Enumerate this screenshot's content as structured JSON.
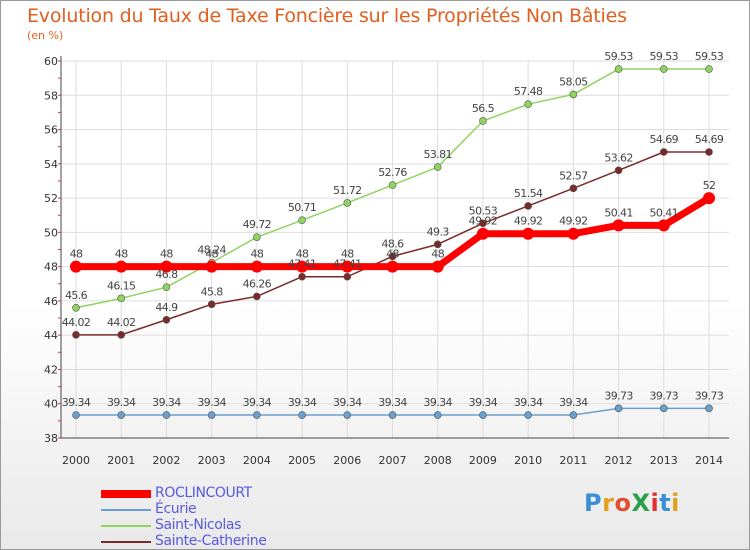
{
  "title": "Evolution du Taux de Taxe Foncière sur les Propriétés Non Bâties",
  "unit_label": "(en %)",
  "logo": {
    "text": "ProXiti",
    "colors": [
      "#3b8fd6",
      "#e0a020",
      "#e05030",
      "#2aa048",
      "#e03030",
      "#3b8fd6",
      "#e0a020"
    ]
  },
  "chart_data": {
    "type": "line",
    "title": "Evolution du Taux de Taxe Foncière sur les Propriétés Non Bâties",
    "ylabel": "(en %)",
    "xlabel": "",
    "x": [
      "2000",
      "2001",
      "2002",
      "2003",
      "2004",
      "2005",
      "2006",
      "2007",
      "2008",
      "2009",
      "2010",
      "2011",
      "2012",
      "2013",
      "2014"
    ],
    "ylim": [
      38,
      60
    ],
    "yticks": [
      "38",
      "40",
      "42",
      "44",
      "46",
      "48",
      "50",
      "52",
      "54",
      "56",
      "58",
      "60"
    ],
    "grid": true,
    "legend_position": "bottom-left",
    "series": [
      {
        "name": "ROCLINCOURT",
        "color": "#ff0000",
        "width": 7,
        "marker": 6,
        "values": [
          48,
          48,
          48,
          48,
          48,
          48,
          48,
          48,
          48,
          49.92,
          49.92,
          49.92,
          50.41,
          50.41,
          52
        ],
        "labels": [
          "48",
          "48",
          "48",
          "48",
          "48",
          "48",
          "48",
          "48",
          "48",
          "49.92",
          "49.92",
          "49.92",
          "50.41",
          "50.41",
          "52"
        ]
      },
      {
        "name": "Écurie",
        "color": "#6aa0d0",
        "width": 1.5,
        "marker": 3.5,
        "values": [
          39.34,
          39.34,
          39.34,
          39.34,
          39.34,
          39.34,
          39.34,
          39.34,
          39.34,
          39.34,
          39.34,
          39.34,
          39.73,
          39.73,
          39.73
        ],
        "labels": [
          "39.34",
          "39.34",
          "39.34",
          "39.34",
          "39.34",
          "39.34",
          "39.34",
          "39.34",
          "39.34",
          "39.34",
          "39.34",
          "39.34",
          "39.73",
          "39.73",
          "39.73"
        ]
      },
      {
        "name": "Saint-Nicolas",
        "color": "#8fd460",
        "width": 1.5,
        "marker": 3.5,
        "values": [
          45.6,
          46.15,
          46.8,
          48.24,
          49.72,
          50.71,
          51.72,
          52.76,
          53.81,
          56.5,
          57.48,
          58.05,
          59.53,
          59.53,
          59.53
        ],
        "labels": [
          "45.6",
          "46.15",
          "46.8",
          "48.24",
          "49.72",
          "50.71",
          "51.72",
          "52.76",
          "53.81",
          "56.5",
          "57.48",
          "58.05",
          "59.53",
          "59.53",
          "59.53"
        ]
      },
      {
        "name": "Sainte-Catherine",
        "color": "#7a2a2a",
        "width": 1.5,
        "marker": 3.5,
        "values": [
          44.02,
          44.02,
          44.9,
          45.8,
          46.26,
          47.41,
          47.41,
          48.6,
          49.3,
          50.53,
          51.54,
          52.57,
          53.62,
          54.69,
          54.69
        ],
        "labels": [
          "44.02",
          "44.02",
          "44.9",
          "45.8",
          "46.26",
          "47.41",
          "47.41",
          "48.6",
          "49.3",
          "50.53",
          "51.54",
          "52.57",
          "53.62",
          "54.69",
          "54.69"
        ]
      }
    ]
  }
}
